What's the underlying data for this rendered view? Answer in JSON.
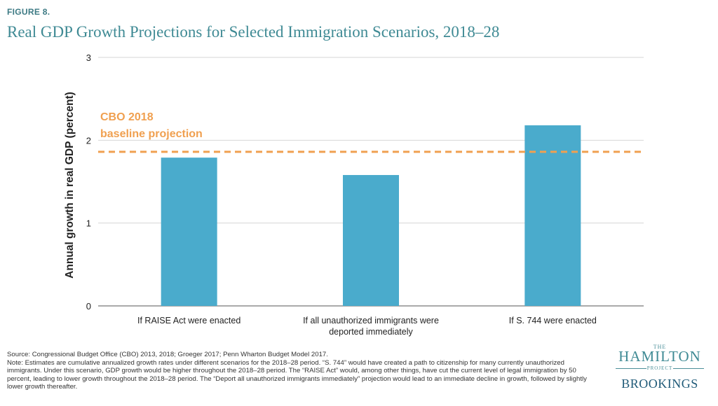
{
  "figure_label": "FIGURE 8.",
  "title": "Real GDP Growth Projections for Selected Immigration Scenarios, 2018–28",
  "chart_data": {
    "type": "bar",
    "categories": [
      [
        "If RAISE Act were enacted"
      ],
      [
        "If all unauthorized immigrants were",
        "deported immediately"
      ],
      [
        "If S. 744 were enacted"
      ]
    ],
    "values": [
      1.79,
      1.58,
      2.18
    ],
    "ylabel": "Annual growth in real GDP (percent)",
    "ylim": [
      0,
      3
    ],
    "yticks": [
      0,
      1,
      2,
      3
    ],
    "grid": true,
    "bar_color": "#4aabcc",
    "reference_line": {
      "value": 1.86,
      "label": [
        "CBO 2018",
        "baseline projection"
      ],
      "color": "#f0a050"
    }
  },
  "source": "Source: Congressional Budget Office (CBO) 2013, 2018; Groeger 2017; Penn Wharton Budget Model 2017.",
  "note": "Note: Estimates are cumulative annualized growth rates under different scenarios for the 2018–28 period. “S. 744” would have created a path to citizenship for many currently unauthorized immigrants. Under this scenario, GDP growth would be higher throughout the 2018–28 period. The “RAISE Act” would, among other things, have cut the current level of legal immigration by 50 percent, leading to lower growth throughout the 2018–28 period. The “Deport all unauthorized immigrants immediately” projection would lead to an immediate decline in growth, followed by slightly lower growth thereafter.",
  "logo": {
    "the": "THE",
    "hamilton": "HAMILTON",
    "project": "PROJECT",
    "brookings": "BROOKINGS"
  }
}
